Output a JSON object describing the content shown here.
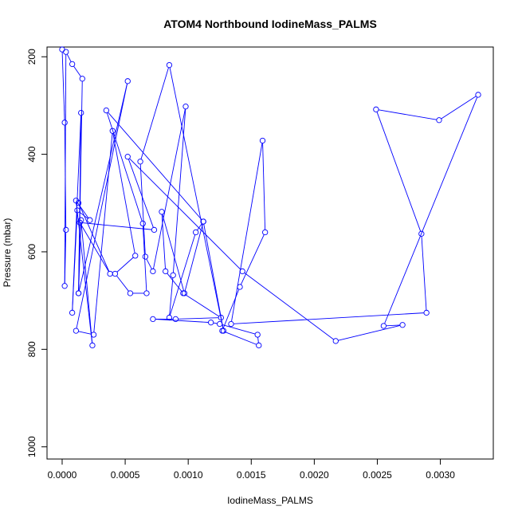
{
  "chart_data": {
    "type": "scatter",
    "title": "ATOM4 Northbound IodineMass_PALMS",
    "xlabel": "IodineMass_PALMS",
    "ylabel": "Pressure (mbar)",
    "xlim": [
      -0.00012,
      0.00342
    ],
    "ylim": [
      1025,
      180
    ],
    "y_reversed": true,
    "x_ticks": [
      {
        "value": 0.0,
        "label": "0.0000"
      },
      {
        "value": 0.0005,
        "label": "0.0005"
      },
      {
        "value": 0.001,
        "label": "0.0010"
      },
      {
        "value": 0.0015,
        "label": "0.0015"
      },
      {
        "value": 0.002,
        "label": "0.0020"
      },
      {
        "value": 0.0025,
        "label": "0.0025"
      },
      {
        "value": 0.003,
        "label": "0.0030"
      }
    ],
    "y_ticks": [
      {
        "value": 200,
        "label": "200"
      },
      {
        "value": 400,
        "label": "400"
      },
      {
        "value": 600,
        "label": "600"
      },
      {
        "value": 800,
        "label": "800"
      },
      {
        "value": 1000,
        "label": "1000"
      }
    ],
    "grid": false,
    "series": [
      {
        "color": "#0000ff",
        "x": [
          0.0,
          2e-05,
          3e-05,
          2e-05,
          3e-05,
          8e-05,
          0.00016,
          0.00013,
          0.00015,
          0.00024,
          0.00011,
          0.00022,
          0.00012,
          8e-05,
          0.00015,
          0.00013,
          0.00052,
          0.00011,
          0.00025,
          0.0004,
          0.00058,
          0.00042,
          0.00054,
          0.00067,
          0.00064,
          0.00035,
          0.00112,
          0.00128,
          0.00085,
          0.00062,
          0.00066,
          0.00072,
          0.00098,
          0.00088,
          0.00085,
          0.00106,
          0.00112,
          0.00097,
          0.00079,
          0.00082,
          0.00096,
          0.00126,
          0.0009,
          0.00072,
          0.00118,
          0.00125,
          0.00155,
          0.00156,
          0.00127,
          0.00141,
          0.00161,
          0.00159,
          0.00134,
          0.00289,
          0.00285,
          0.00249,
          0.00299,
          0.0033,
          0.00255,
          0.0027,
          0.00217,
          0.00143,
          0.00052,
          0.00073,
          0.00014,
          0.00038,
          0.00013
        ],
        "y": [
          185,
          335,
          555,
          670,
          190,
          215,
          245,
          685,
          535,
          792,
          495,
          535,
          515,
          725,
          315,
          685,
          250,
          762,
          770,
          352,
          608,
          645,
          685,
          685,
          542,
          310,
          538,
          762,
          217,
          415,
          610,
          640,
          302,
          648,
          735,
          560,
          538,
          685,
          518,
          640,
          685,
          735,
          738,
          738,
          745,
          748,
          770,
          792,
          762,
          672,
          560,
          372,
          748,
          725,
          563,
          308,
          330,
          278,
          752,
          750,
          783,
          640,
          405,
          555,
          540,
          645,
          500
        ]
      }
    ]
  }
}
